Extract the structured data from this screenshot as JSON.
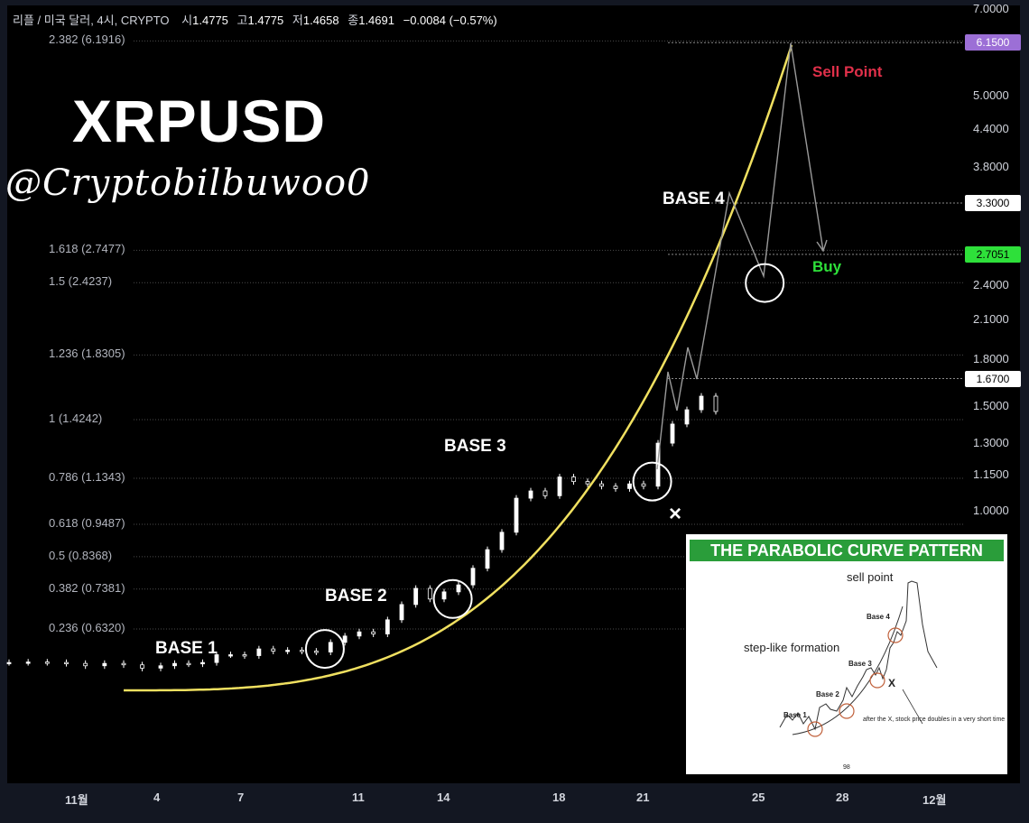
{
  "legend": {
    "symbol": "리플 / 미국 달러, 4시, CRYPTO",
    "open_label": "시",
    "open": "1.4775",
    "high_label": "고",
    "high": "1.4775",
    "low_label": "저",
    "low": "1.4658",
    "close_label": "종",
    "close": "1.4691",
    "change": "−0.0084 (−0.57%)"
  },
  "overlay": {
    "title": "XRPUSD",
    "handle": "@Cryptobilbuwoo0",
    "sell_point": "Sell Point",
    "buy": "Buy",
    "x_mark": "×"
  },
  "inset": {
    "title": "THE PARABOLIC CURVE PATTERN",
    "sell_point": "sell point",
    "step_like": "step-like formation",
    "base1": "Base 1",
    "base2": "Base 2",
    "base3": "Base 3",
    "base4": "Base 4",
    "x_mark": "X",
    "after_x": "after the X, stock price doubles in a very short time",
    "page": "98"
  },
  "colors": {
    "background": "#000000",
    "candle_up": "#ffffff",
    "candle_down": "#ffffff",
    "parabola": "#f0e060",
    "sell_point": "#e0304a",
    "buy": "#2ee03a",
    "badge_purple": "#9c6fd6",
    "badge_green": "#2ee03a",
    "inset_header": "#2a9d3a"
  },
  "chart_data": {
    "type": "candlestick",
    "y_scale": "log",
    "ylim": [
      0.45,
      7.0
    ],
    "y_ticks": [
      "7.0000",
      "6.1500",
      "5.0000",
      "4.4000",
      "3.8000",
      "3.3000",
      "2.7051",
      "2.4000",
      "2.1000",
      "1.8000",
      "1.6700",
      "1.5000",
      "1.3000",
      "1.1500",
      "1.0000"
    ],
    "y_tick_values": [
      7.0,
      6.15,
      5.0,
      4.4,
      3.8,
      3.3,
      2.7051,
      2.4,
      2.1,
      1.8,
      1.67,
      1.5,
      1.3,
      1.15,
      1.0
    ],
    "badges": [
      {
        "label": "6.1500",
        "value": 6.15,
        "style": "purple"
      },
      {
        "label": "3.3000",
        "value": 3.3,
        "style": "white"
      },
      {
        "label": "2.7051",
        "value": 2.7051,
        "style": "green"
      },
      {
        "label": "1.6700",
        "value": 1.67,
        "style": "white"
      }
    ],
    "x_ticks": [
      "11월",
      "4",
      "7",
      "11",
      "14",
      "18",
      "21",
      "25",
      "28",
      "12월"
    ],
    "fib_levels": [
      {
        "label": "2.382 (6.1916)",
        "value": 6.1916
      },
      {
        "label": "1.618 (2.7477)",
        "value": 2.7477
      },
      {
        "label": "1.5 (2.4237)",
        "value": 2.4237
      },
      {
        "label": "1.236 (1.8305)",
        "value": 1.8305
      },
      {
        "label": "1 (1.4242)",
        "value": 1.4242
      },
      {
        "label": "0.786 (1.1343)",
        "value": 1.1343
      },
      {
        "label": "0.618 (0.9487)",
        "value": 0.9487
      },
      {
        "label": "0.5 (0.8368)",
        "value": 0.8368
      },
      {
        "label": "0.382 (0.7381)",
        "value": 0.7381
      },
      {
        "label": "0.236 (0.6320)",
        "value": 0.632
      }
    ],
    "bases": [
      {
        "label": "BASE 1",
        "day": 9.8,
        "value": 0.585
      },
      {
        "label": "BASE 2",
        "day": 14.3,
        "value": 0.71
      },
      {
        "label": "BASE 3",
        "day": 21.3,
        "value": 1.12
      },
      {
        "label": "BASE 4",
        "day": 25.2,
        "value": 2.42
      }
    ],
    "candles": [
      {
        "day": 0.0,
        "close": 0.555
      },
      {
        "day": 0.5,
        "close": 0.556
      },
      {
        "day": 1.0,
        "close": 0.555
      },
      {
        "day": 1.5,
        "close": 0.553
      },
      {
        "day": 2.0,
        "close": 0.548
      },
      {
        "day": 2.5,
        "close": 0.553
      },
      {
        "day": 3.0,
        "close": 0.55
      },
      {
        "day": 3.5,
        "close": 0.543
      },
      {
        "day": 4.0,
        "close": 0.548
      },
      {
        "day": 4.5,
        "close": 0.553
      },
      {
        "day": 5.0,
        "close": 0.552
      },
      {
        "day": 5.5,
        "close": 0.555
      },
      {
        "day": 6.0,
        "close": 0.572
      },
      {
        "day": 6.5,
        "close": 0.572
      },
      {
        "day": 7.0,
        "close": 0.57
      },
      {
        "day": 7.5,
        "close": 0.585
      },
      {
        "day": 8.0,
        "close": 0.58
      },
      {
        "day": 8.5,
        "close": 0.582
      },
      {
        "day": 9.0,
        "close": 0.58
      },
      {
        "day": 9.5,
        "close": 0.578
      },
      {
        "day": 10.0,
        "close": 0.6
      },
      {
        "day": 10.5,
        "close": 0.615
      },
      {
        "day": 11.0,
        "close": 0.625
      },
      {
        "day": 11.5,
        "close": 0.62
      },
      {
        "day": 12.0,
        "close": 0.655
      },
      {
        "day": 12.5,
        "close": 0.695
      },
      {
        "day": 13.0,
        "close": 0.74
      },
      {
        "day": 13.5,
        "close": 0.71
      },
      {
        "day": 14.0,
        "close": 0.73
      },
      {
        "day": 14.5,
        "close": 0.75
      },
      {
        "day": 15.0,
        "close": 0.8
      },
      {
        "day": 15.5,
        "close": 0.86
      },
      {
        "day": 16.0,
        "close": 0.92
      },
      {
        "day": 16.5,
        "close": 1.05
      },
      {
        "day": 17.0,
        "close": 1.08
      },
      {
        "day": 17.5,
        "close": 1.06
      },
      {
        "day": 18.0,
        "close": 1.14
      },
      {
        "day": 18.5,
        "close": 1.12
      },
      {
        "day": 19.0,
        "close": 1.11
      },
      {
        "day": 19.5,
        "close": 1.1
      },
      {
        "day": 20.0,
        "close": 1.09
      },
      {
        "day": 20.5,
        "close": 1.11
      },
      {
        "day": 21.0,
        "close": 1.1
      },
      {
        "day": 21.5,
        "close": 1.3
      },
      {
        "day": 22.0,
        "close": 1.4
      },
      {
        "day": 22.5,
        "close": 1.48
      },
      {
        "day": 23.0,
        "close": 1.56
      },
      {
        "day": 23.5,
        "close": 1.47
      }
    ]
  }
}
